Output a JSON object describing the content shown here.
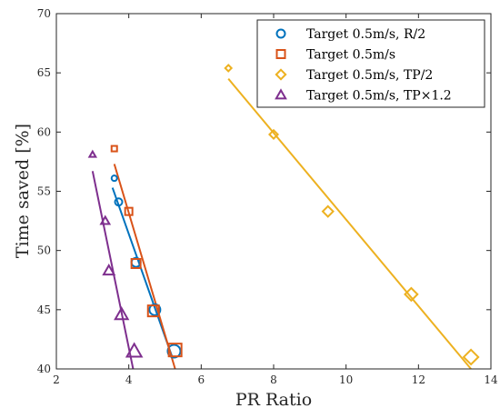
{
  "chart_data": {
    "type": "scatter",
    "xlabel": "PR Ratio",
    "ylabel": "Time saved [%]",
    "xlim": [
      2,
      14
    ],
    "ylim": [
      40,
      70
    ],
    "xticks": [
      2,
      4,
      6,
      8,
      10,
      12,
      14
    ],
    "yticks": [
      40,
      45,
      50,
      55,
      60,
      65,
      70
    ],
    "legend_position": "top-right",
    "series": [
      {
        "name": "Target 0.5m/s, R/2",
        "marker": "circle",
        "color": "#0072BD",
        "points": [
          [
            3.6,
            56.1
          ],
          [
            3.72,
            54.1
          ],
          [
            4.2,
            49.0
          ],
          [
            4.72,
            45.0
          ],
          [
            5.25,
            41.5
          ]
        ],
        "fit": [
          [
            3.55,
            55.3
          ],
          [
            5.2,
            41.0
          ]
        ]
      },
      {
        "name": "Target 0.5m/s",
        "marker": "square",
        "color": "#D95319",
        "points": [
          [
            3.6,
            58.6
          ],
          [
            4.0,
            53.3
          ],
          [
            4.2,
            48.9
          ],
          [
            4.68,
            44.9
          ],
          [
            5.28,
            41.6
          ]
        ],
        "fit": [
          [
            3.6,
            57.3
          ],
          [
            5.28,
            40.0
          ]
        ]
      },
      {
        "name": "Target 0.5m/s, TP/2",
        "marker": "diamond",
        "color": "#EDB120",
        "points": [
          [
            6.75,
            65.4
          ],
          [
            8.0,
            59.8
          ],
          [
            9.5,
            53.3
          ],
          [
            11.8,
            46.3
          ],
          [
            13.45,
            41.0
          ]
        ],
        "fit": [
          [
            6.75,
            64.5
          ],
          [
            13.45,
            40.0
          ]
        ]
      },
      {
        "name": "Target 0.5m/s, TP×1.2",
        "marker": "triangle",
        "color": "#7E2F8E",
        "points": [
          [
            3.0,
            58.1
          ],
          [
            3.35,
            52.5
          ],
          [
            3.45,
            48.3
          ],
          [
            3.8,
            44.6
          ],
          [
            4.15,
            41.5
          ]
        ],
        "fit": [
          [
            3.0,
            56.7
          ],
          [
            4.12,
            40.0
          ]
        ]
      }
    ]
  }
}
